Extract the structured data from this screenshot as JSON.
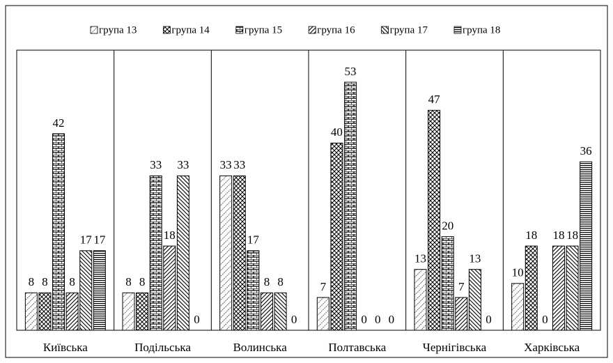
{
  "chart_data": {
    "type": "bar",
    "categories": [
      "Київська",
      "Подільська",
      "Волинська",
      "Полтавська",
      "Чернігівська",
      "Харківська"
    ],
    "series": [
      {
        "name": "група 13",
        "values": [
          8,
          8,
          33,
          7,
          13,
          10
        ]
      },
      {
        "name": "група 14",
        "values": [
          8,
          8,
          33,
          40,
          47,
          18
        ]
      },
      {
        "name": "група 15",
        "values": [
          42,
          33,
          17,
          53,
          20,
          0
        ]
      },
      {
        "name": "група 16",
        "values": [
          8,
          18,
          8,
          0,
          7,
          18
        ]
      },
      {
        "name": "група 17",
        "values": [
          17,
          33,
          8,
          0,
          13,
          18
        ]
      },
      {
        "name": "група 18",
        "values": [
          17,
          0,
          0,
          0,
          0,
          36
        ]
      }
    ],
    "legend": "top"
  }
}
